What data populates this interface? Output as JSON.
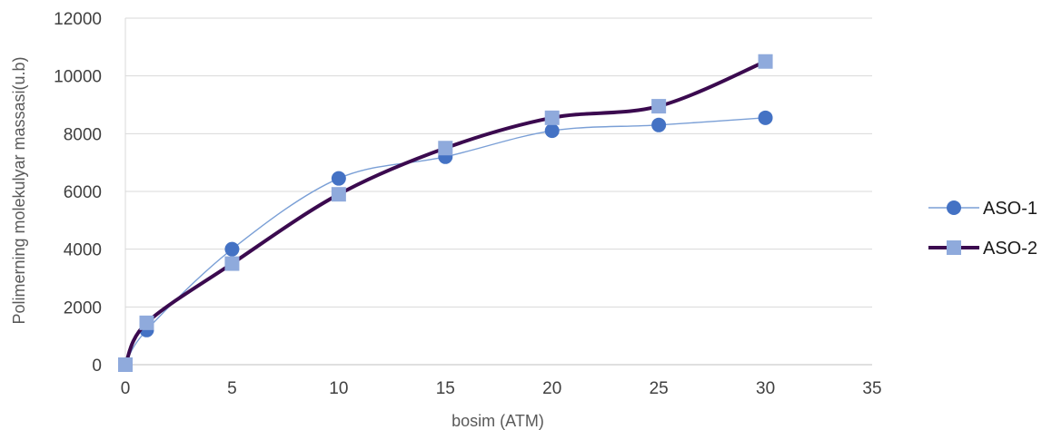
{
  "chart_data": {
    "type": "scatter",
    "title": "",
    "xlabel": "bosim (ATM)",
    "ylabel": "Polimerning molekulyar massasi(u.b)",
    "xlim": [
      0,
      35
    ],
    "ylim": [
      0,
      12000
    ],
    "x_ticks": [
      "0",
      "5",
      "10",
      "15",
      "20",
      "25",
      "30",
      "35"
    ],
    "y_ticks": [
      "0",
      "2000",
      "4000",
      "6000",
      "8000",
      "10000",
      "12000"
    ],
    "grid": true,
    "legend_position": "right",
    "series": [
      {
        "name": "ASO-1",
        "marker": "circle",
        "color": "#4472c4",
        "line_color": "#7a9fd6",
        "line": "thin smooth",
        "x": [
          0,
          1,
          5,
          10,
          15,
          20,
          25,
          30
        ],
        "y": [
          0,
          1200,
          4000,
          6450,
          7200,
          8100,
          8300,
          8550
        ]
      },
      {
        "name": "ASO-2",
        "marker": "square",
        "color": "#8faadc",
        "line_color": "#3b0a4f",
        "line": "thick smooth",
        "x": [
          0,
          1,
          5,
          10,
          15,
          20,
          25,
          30
        ],
        "y": [
          0,
          1450,
          3500,
          5900,
          7500,
          8550,
          8950,
          10500
        ]
      }
    ]
  }
}
